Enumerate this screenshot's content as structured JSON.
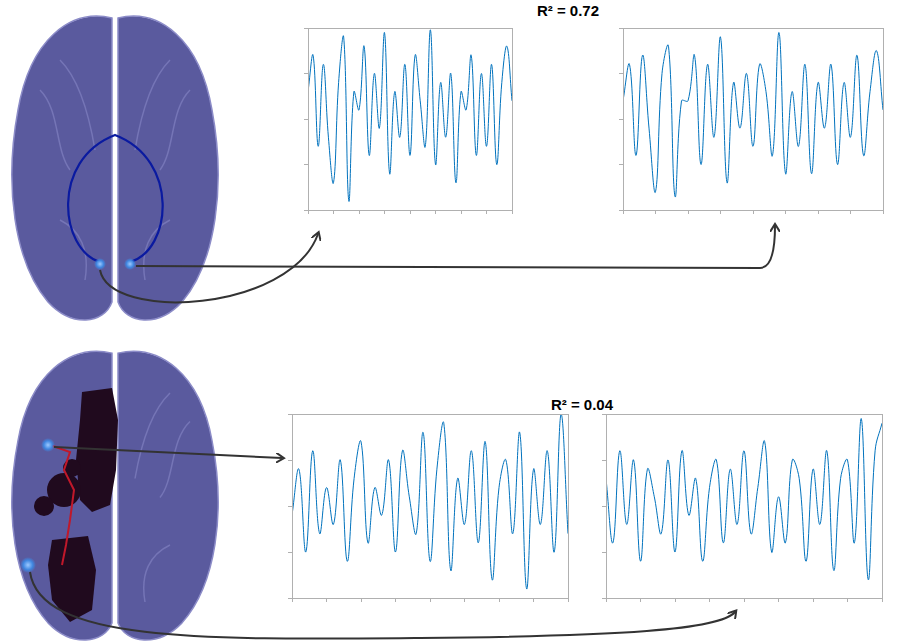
{
  "annotations": [
    "R² = 0.72",
    "R² = 0.04"
  ],
  "chart_data": [
    {
      "type": "line",
      "color": "#0072bd",
      "grid": false,
      "tick_labels": false,
      "x": [
        0,
        1,
        2,
        3,
        4,
        5,
        6,
        7,
        8,
        9,
        10,
        11,
        12,
        13,
        14,
        15,
        16,
        17,
        18,
        19,
        20,
        21,
        22,
        23,
        24,
        25,
        26,
        27,
        28,
        29,
        30,
        31,
        32,
        33,
        34,
        35,
        36,
        37,
        38,
        39,
        40
      ],
      "values": [
        0.3,
        0.7,
        -0.3,
        0.6,
        -0.2,
        -0.7,
        0.4,
        0.9,
        -0.9,
        0.3,
        0.1,
        0.8,
        -0.4,
        0.5,
        -0.1,
        0.95,
        -0.6,
        0.3,
        -0.2,
        0.6,
        -0.4,
        0.7,
        0.2,
        -0.3,
        0.98,
        -0.5,
        0.4,
        -0.2,
        0.5,
        -0.7,
        0.3,
        0.1,
        0.7,
        -0.4,
        0.5,
        -0.3,
        0.6,
        -0.5,
        0.4,
        0.8,
        0.2
      ],
      "xlim": [
        0,
        40
      ],
      "xticks": [
        0,
        5,
        10,
        15,
        20,
        25,
        30,
        35,
        40
      ],
      "ylim": [
        -1,
        1
      ],
      "yticks": [
        -1,
        -0.5,
        0,
        0.5,
        1
      ]
    },
    {
      "type": "line",
      "color": "#0072bd",
      "grid": false,
      "tick_labels": false,
      "x": [
        0,
        1,
        2,
        3,
        4,
        5,
        6,
        7,
        8,
        9,
        10,
        11,
        12,
        13,
        14,
        15,
        16,
        17,
        18,
        19,
        20,
        21,
        22,
        23,
        24,
        25,
        26,
        27,
        28,
        29,
        30,
        31,
        32,
        33,
        34,
        35,
        36,
        37,
        38,
        39,
        40
      ],
      "values": [
        0.2,
        0.6,
        -0.4,
        0.7,
        -0.1,
        -0.8,
        0.5,
        0.8,
        -0.85,
        0.2,
        0.2,
        0.7,
        -0.5,
        0.6,
        -0.2,
        0.9,
        -0.7,
        0.4,
        -0.1,
        0.5,
        -0.3,
        0.6,
        0.3,
        -0.4,
        0.95,
        -0.6,
        0.3,
        -0.3,
        0.6,
        -0.6,
        0.4,
        -0.1,
        0.6,
        -0.5,
        0.4,
        -0.2,
        0.7,
        -0.4,
        0.3,
        0.75,
        0.1
      ],
      "xlim": [
        0,
        40
      ],
      "xticks": [
        0,
        5,
        10,
        15,
        20,
        25,
        30,
        35,
        40
      ],
      "ylim": [
        -1,
        1
      ],
      "yticks": [
        -1,
        -0.5,
        0,
        0.5,
        1
      ]
    },
    {
      "type": "line",
      "color": "#0072bd",
      "grid": false,
      "tick_labels": false,
      "x": [
        0,
        1,
        2,
        3,
        4,
        5,
        6,
        7,
        8,
        9,
        10,
        11,
        12,
        13,
        14,
        15,
        16,
        17,
        18,
        19,
        20,
        21,
        22,
        23,
        24,
        25,
        26,
        27,
        28,
        29,
        30,
        31,
        32,
        33,
        34,
        35,
        36,
        37,
        38,
        39,
        40
      ],
      "values": [
        -0.1,
        0.4,
        -0.5,
        0.6,
        -0.3,
        0.2,
        -0.2,
        0.5,
        -0.6,
        0.3,
        0.7,
        -0.4,
        0.2,
        -0.1,
        0.5,
        -0.5,
        0.6,
        0.1,
        -0.3,
        0.8,
        -0.6,
        0.4,
        0.9,
        -0.7,
        0.3,
        -0.2,
        0.6,
        -0.4,
        0.7,
        -0.8,
        0.2,
        0.5,
        -0.3,
        0.8,
        -0.9,
        0.4,
        -0.2,
        0.6,
        -0.5,
        1.0,
        -0.3
      ],
      "xlim": [
        0,
        40
      ],
      "xticks": [
        0,
        5,
        10,
        15,
        20,
        25,
        30,
        35,
        40
      ],
      "ylim": [
        -1,
        1
      ],
      "yticks": [
        -1,
        -0.5,
        0,
        0.5,
        1
      ]
    },
    {
      "type": "line",
      "color": "#0072bd",
      "grid": false,
      "tick_labels": false,
      "x": [
        0,
        1,
        2,
        3,
        4,
        5,
        6,
        7,
        8,
        9,
        10,
        11,
        12,
        13,
        14,
        15,
        16,
        17,
        18,
        19,
        20,
        21,
        22,
        23,
        24,
        25,
        26,
        27,
        28,
        29,
        30,
        31,
        32,
        33,
        34,
        35,
        36,
        37,
        38,
        39,
        40
      ],
      "values": [
        0.3,
        -0.4,
        0.6,
        -0.2,
        0.5,
        -0.6,
        0.4,
        0.1,
        -0.3,
        0.5,
        -0.5,
        0.6,
        -0.1,
        0.3,
        -0.6,
        0.2,
        0.5,
        -0.4,
        0.4,
        -0.2,
        0.6,
        -0.3,
        0.2,
        0.7,
        -0.5,
        0.1,
        -0.4,
        0.5,
        0.3,
        -0.6,
        0.4,
        -0.2,
        0.6,
        -0.7,
        0.3,
        0.5,
        -0.4,
        0.95,
        -0.8,
        0.6,
        0.9
      ],
      "xlim": [
        0,
        40
      ],
      "xticks": [
        0,
        5,
        10,
        15,
        20,
        25,
        30,
        35,
        40
      ],
      "ylim": [
        -1,
        1
      ],
      "yticks": [
        -1,
        -0.5,
        0,
        0.5,
        1
      ]
    }
  ]
}
